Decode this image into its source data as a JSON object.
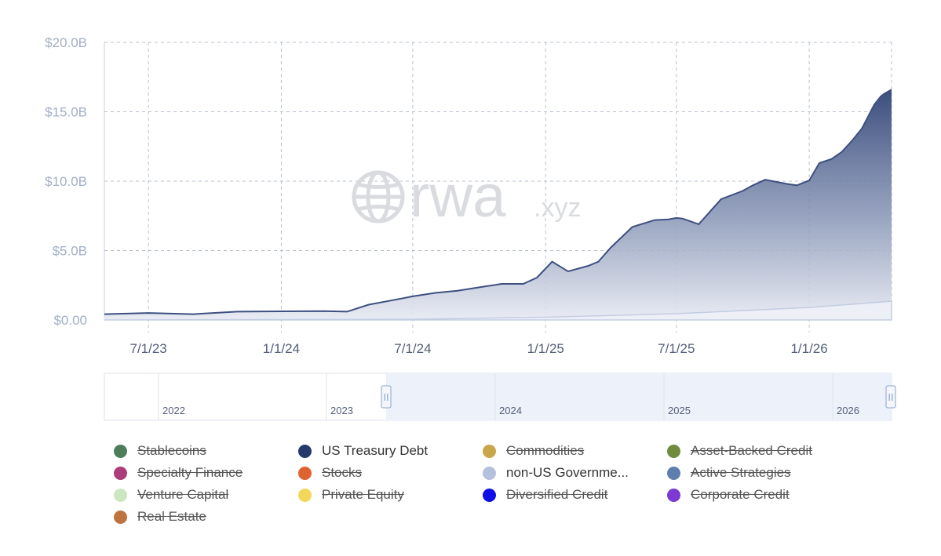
{
  "chart_data": {
    "type": "area",
    "y_ticks": [
      "$0.00",
      "$5.0B",
      "$10.0B",
      "$15.0B",
      "$20.0B"
    ],
    "ylim": [
      0,
      20
    ],
    "y_unit": "B USD",
    "x_ticks": [
      {
        "label": "7/1/23",
        "date": "2023-07-01"
      },
      {
        "label": "1/1/24",
        "date": "2024-01-01"
      },
      {
        "label": "7/1/24",
        "date": "2024-07-01"
      },
      {
        "label": "1/1/25",
        "date": "2025-01-01"
      },
      {
        "label": "7/1/25",
        "date": "2025-07-01"
      },
      {
        "label": "1/1/26",
        "date": "2026-01-01"
      }
    ],
    "xlim": [
      "2023-05-01",
      "2026-04-25"
    ],
    "grid": true,
    "watermark": {
      "brand": "rwa",
      "suffix": ".xyz"
    },
    "series": [
      {
        "name": "US Treasury Debt",
        "color": "#3d5080",
        "x": [
          "2023-05-01",
          "2023-07-01",
          "2023-09-01",
          "2023-11-01",
          "2024-01-01",
          "2024-03-01",
          "2024-04-01",
          "2024-05-01",
          "2024-06-01",
          "2024-07-01",
          "2024-08-01",
          "2024-09-01",
          "2024-10-01",
          "2024-11-01",
          "2024-12-01",
          "2024-12-20",
          "2025-01-10",
          "2025-02-01",
          "2025-03-01",
          "2025-03-15",
          "2025-04-01",
          "2025-05-01",
          "2025-06-01",
          "2025-06-20",
          "2025-07-01",
          "2025-07-10",
          "2025-08-01",
          "2025-09-01",
          "2025-10-01",
          "2025-10-15",
          "2025-11-01",
          "2025-12-01",
          "2025-12-15",
          "2026-01-01",
          "2026-01-15",
          "2026-02-01",
          "2026-02-15",
          "2026-03-01",
          "2026-03-15",
          "2026-04-01",
          "2026-04-10",
          "2026-04-15",
          "2026-04-25"
        ],
        "values": [
          0.42,
          0.5,
          0.42,
          0.6,
          0.62,
          0.63,
          0.6,
          1.1,
          1.4,
          1.7,
          1.95,
          2.1,
          2.35,
          2.6,
          2.6,
          3.05,
          4.2,
          3.5,
          3.9,
          4.2,
          5.2,
          6.7,
          7.2,
          7.25,
          7.35,
          7.3,
          6.9,
          8.7,
          9.3,
          9.7,
          10.1,
          9.8,
          9.7,
          10.05,
          11.3,
          11.6,
          12.1,
          12.9,
          13.8,
          15.5,
          16.1,
          16.3,
          16.6
        ]
      },
      {
        "name": "non-US Government Debt",
        "color": "#c3cde2",
        "x": [
          "2023-05-01",
          "2024-07-01",
          "2025-01-01",
          "2025-07-01",
          "2026-01-01",
          "2026-04-25"
        ],
        "values": [
          0.0,
          0.05,
          0.2,
          0.45,
          0.9,
          1.35
        ]
      }
    ]
  },
  "navigator": {
    "years": [
      "2022",
      "2023",
      "2024",
      "2025",
      "2026"
    ],
    "handle_glyph": "II",
    "selected_range": [
      "2023-05-01",
      "2026-04-25"
    ]
  },
  "legend": [
    {
      "label": "Stablecoins",
      "color": "#4e7d5a",
      "active": false
    },
    {
      "label": "US Treasury Debt",
      "color": "#253a6b",
      "active": true
    },
    {
      "label": "Commodities",
      "color": "#c9a64a",
      "active": false
    },
    {
      "label": "Asset-Backed Credit",
      "color": "#6f8b3f",
      "active": false
    },
    {
      "label": "Specialty Finance",
      "color": "#ab3d7a",
      "active": false
    },
    {
      "label": "Stocks",
      "color": "#df6330",
      "active": false
    },
    {
      "label": "non-US Governme...",
      "color": "#b4c1dd",
      "active": true
    },
    {
      "label": "Active Strategies",
      "color": "#5e7fae",
      "active": false
    },
    {
      "label": "Venture Capital",
      "color": "#cde6c2",
      "active": false
    },
    {
      "label": "Private Equity",
      "color": "#f3d75a",
      "active": false
    },
    {
      "label": "Diversified Credit",
      "color": "#1010e6",
      "active": false
    },
    {
      "label": "Corporate Credit",
      "color": "#7c3ad3",
      "active": false
    },
    {
      "label": "Real Estate",
      "color": "#bf7440",
      "active": false
    }
  ]
}
